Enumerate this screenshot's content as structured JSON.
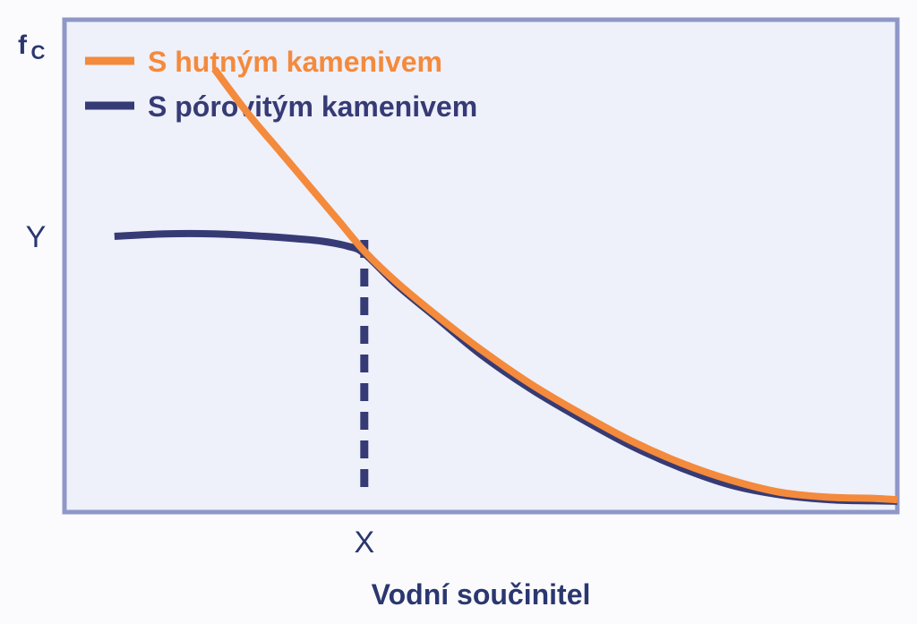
{
  "chart_data": {
    "type": "line",
    "title": "",
    "ylabel": {
      "main": "f",
      "sub": "C"
    },
    "xlabel": "Vodní součinitel",
    "x_ticks": [
      {
        "x": 0.36,
        "label": "X"
      }
    ],
    "y_ticks": [
      {
        "y": 56,
        "label": "Y"
      }
    ],
    "xlim": [
      0,
      1
    ],
    "ylim": [
      0,
      100
    ],
    "grid": false,
    "legend_position": "top-left",
    "series": [
      {
        "name": "S hutným kamenivem",
        "color": "#f48a3c",
        "x": [
          0.18,
          0.22,
          0.26,
          0.3,
          0.33,
          0.36,
          0.4,
          0.45,
          0.5,
          0.56,
          0.62,
          0.68,
          0.74,
          0.8,
          0.86,
          0.92,
          0.97,
          1.0
        ],
        "y": [
          90,
          81,
          73,
          65,
          59,
          53,
          46.5,
          39.5,
          33,
          26,
          20,
          14.5,
          10,
          6.5,
          4,
          3,
          2.8,
          2.5
        ]
      },
      {
        "name": "S pórovitým kamenivem",
        "color": "#363b75",
        "x": [
          0.06,
          0.12,
          0.18,
          0.24,
          0.28,
          0.31,
          0.34,
          0.36,
          0.4,
          0.45,
          0.5,
          0.56,
          0.62,
          0.68,
          0.74,
          0.8,
          0.86,
          0.92,
          0.97,
          1.0
        ],
        "y": [
          56,
          56.5,
          56.5,
          56,
          55.5,
          55,
          54,
          52.5,
          46,
          39,
          32,
          25,
          19,
          13.5,
          9,
          5.5,
          3.5,
          2.5,
          2.3,
          2.2
        ]
      }
    ]
  },
  "colors": {
    "frame": "#8f97c8",
    "plot_bg": "#eef0fa",
    "dashed_marker": "#363b75",
    "text": "#2a3770"
  }
}
